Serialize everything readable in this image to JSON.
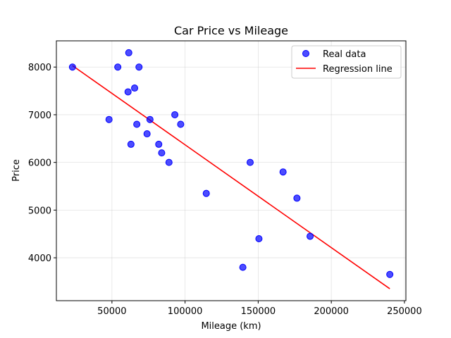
{
  "chart_data": {
    "type": "scatter",
    "title": "Car Price vs Mileage",
    "xlabel": "Mileage (km)",
    "ylabel": "Price",
    "xlim": [
      12000,
      251000
    ],
    "ylim": [
      3100,
      8550
    ],
    "xticks": [
      50000,
      100000,
      150000,
      200000,
      250000
    ],
    "yticks": [
      4000,
      5000,
      6000,
      7000,
      8000
    ],
    "grid": true,
    "legend_position": "top-right",
    "colors": {
      "points": "#0000ff",
      "line": "#ff0000"
    },
    "series": [
      {
        "name": "Real data",
        "kind": "scatter",
        "x": [
          23000,
          48000,
          54000,
          61000,
          61500,
          63000,
          65500,
          67000,
          68500,
          74000,
          76000,
          82000,
          84000,
          89000,
          93000,
          97000,
          114500,
          139500,
          144500,
          150500,
          167000,
          176500,
          185500,
          240000
        ],
        "y": [
          8000,
          6900,
          8000,
          7480,
          8300,
          6380,
          7560,
          6800,
          8000,
          6600,
          6900,
          6380,
          6200,
          6000,
          7000,
          6800,
          5350,
          3800,
          6000,
          4400,
          5800,
          5250,
          4450,
          3650
        ]
      },
      {
        "name": "Regression line",
        "kind": "line",
        "x": [
          23000,
          240000
        ],
        "y": [
          8030,
          3350
        ]
      }
    ]
  }
}
